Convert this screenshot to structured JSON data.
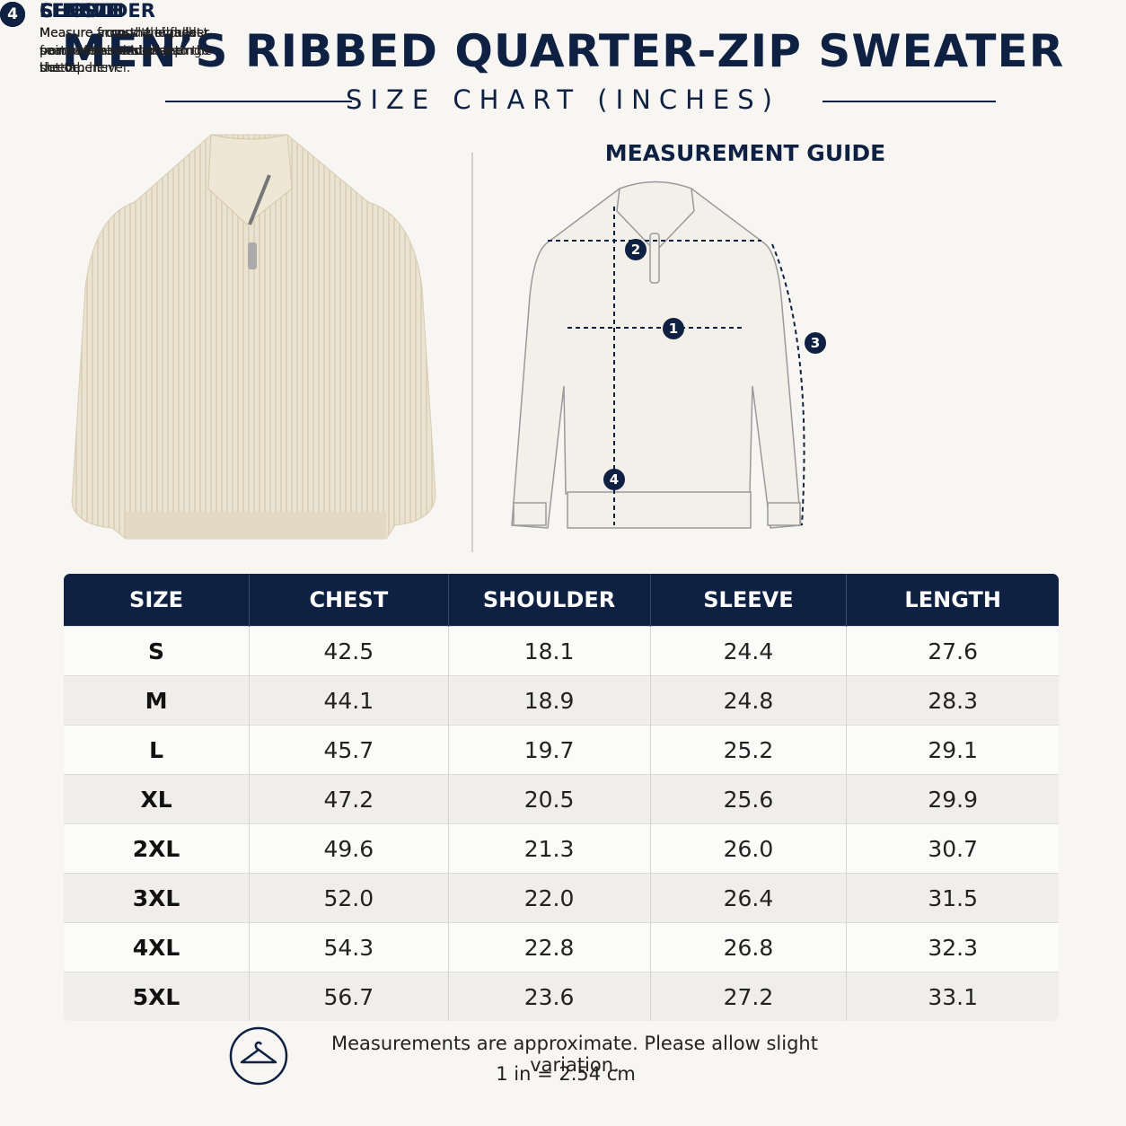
{
  "header": {
    "title": "MEN’S RIBBED QUARTER-ZIP SWEATER",
    "subtitle": "SIZE CHART (INCHES)"
  },
  "guide": {
    "title": "MEASUREMENT GUIDE",
    "items": [
      {
        "number": "1",
        "title": "CHEST",
        "text": "Measure around the fullest part of the chest, keeping the tape level."
      },
      {
        "number": "2",
        "title": "SHOULDER",
        "text": "Measure across the back from one shoulder seam to the other."
      },
      {
        "number": "3",
        "title": "SLEEVE",
        "text": "Measure from the shoulder seam to the end of the sleeve."
      },
      {
        "number": "4",
        "title": "LENGTH",
        "text": "Measure from the highest point of the shoulder to the bottom hem."
      }
    ]
  },
  "table": {
    "columns": [
      "SIZE",
      "CHEST",
      "SHOULDER",
      "SLEEVE",
      "LENGTH"
    ],
    "rows": [
      [
        "S",
        "42.5",
        "18.1",
        "24.4",
        "27.6"
      ],
      [
        "M",
        "44.1",
        "18.9",
        "24.8",
        "28.3"
      ],
      [
        "L",
        "45.7",
        "19.7",
        "25.2",
        "29.1"
      ],
      [
        "XL",
        "47.2",
        "20.5",
        "25.6",
        "29.9"
      ],
      [
        "2XL",
        "49.6",
        "21.3",
        "26.0",
        "30.7"
      ],
      [
        "3XL",
        "52.0",
        "22.0",
        "26.4",
        "31.5"
      ],
      [
        "4XL",
        "54.3",
        "22.8",
        "26.8",
        "32.3"
      ],
      [
        "5XL",
        "56.7",
        "23.6",
        "27.2",
        "33.1"
      ]
    ]
  },
  "footer": {
    "note": "Measurements are approximate. Please allow slight variation.",
    "conversion": "1 in = 2.54 cm"
  }
}
